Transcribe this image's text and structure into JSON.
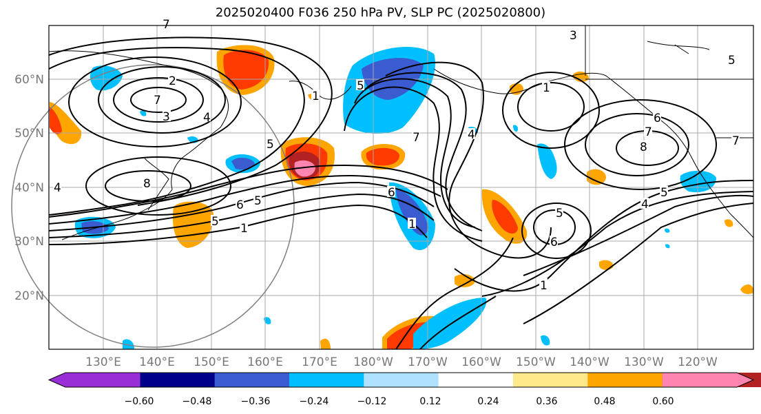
{
  "title": "2025020400 F036 250 hPa PV, SLP PC (2025020800)",
  "lat_ticks": [
    "20°N",
    "30°N",
    "40°N",
    "50°N",
    "60°N"
  ],
  "lon_ticks": [
    "130°E",
    "140°E",
    "150°E",
    "160°E",
    "170°E",
    "180°W",
    "170°W",
    "160°W",
    "150°W",
    "140°W",
    "130°W",
    "120°W"
  ],
  "colorbar": {
    "colors": [
      "#9a2ed6",
      "#00008b",
      "#3b5bd0",
      "#00bfff",
      "#b0e2ff",
      "#ffffff",
      "#ffe98a",
      "#ffa500",
      "#ff3a00",
      "#b22222",
      "#ff85b0"
    ],
    "tick_labels": [
      "−0.60",
      "−0.48",
      "−0.36",
      "−0.24",
      "−0.12",
      "0.12",
      "0.24",
      "0.36",
      "0.48",
      "0.60"
    ]
  },
  "contour_labels": [
    "7",
    "2",
    "3",
    "4",
    "5",
    "8",
    "6",
    "5",
    "1",
    "6",
    "5",
    "4",
    "1",
    "7",
    "1",
    "6",
    "5",
    "8",
    "7",
    "4",
    "5",
    "6",
    "7",
    "3",
    "5",
    "4",
    "1",
    "5",
    "1",
    "7"
  ]
}
